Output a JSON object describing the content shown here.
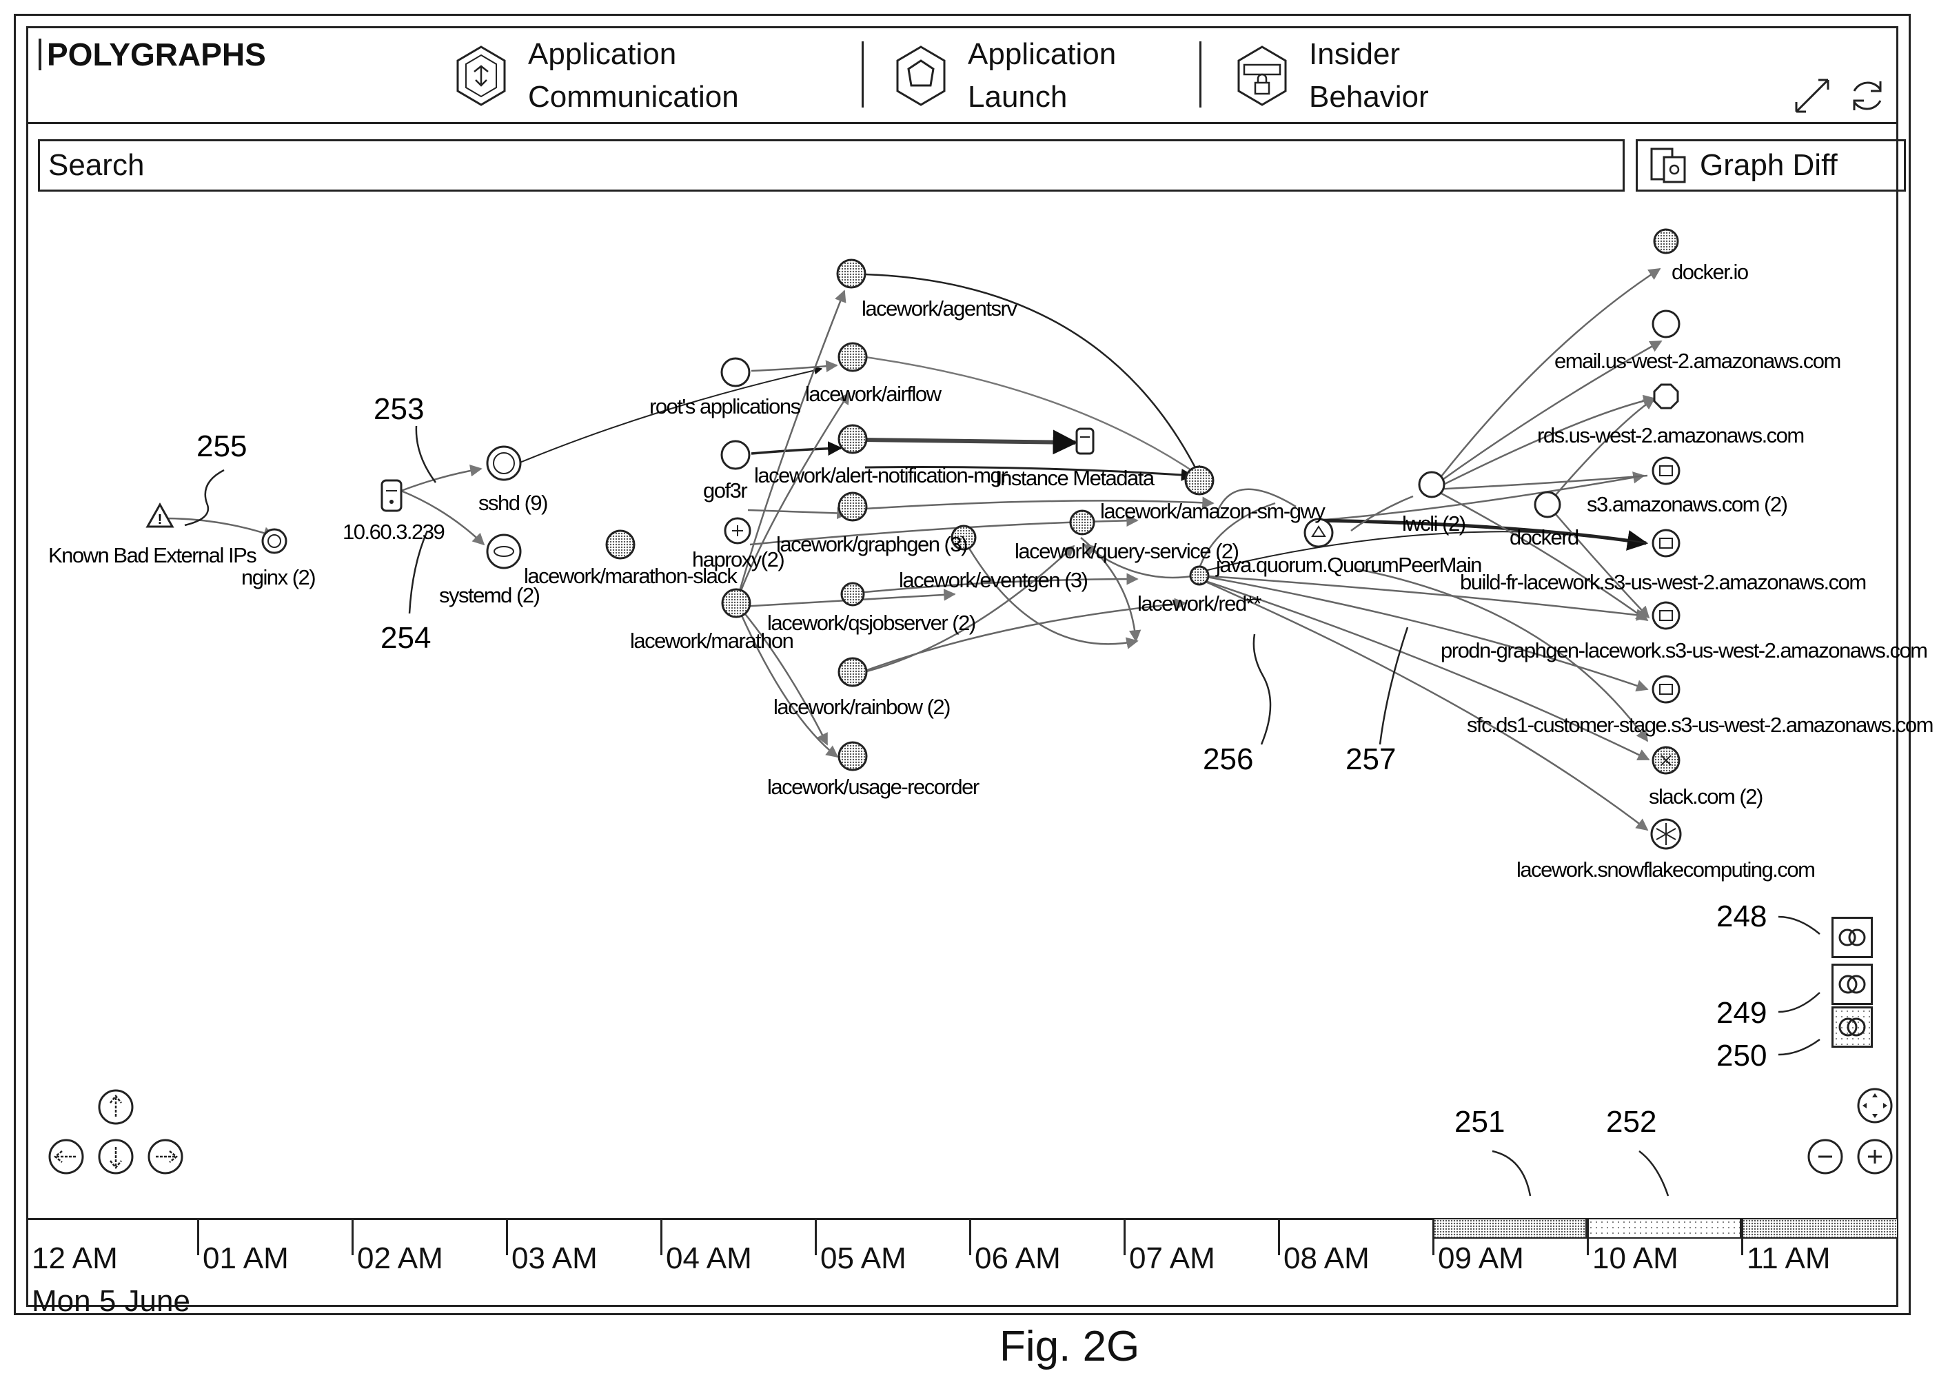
{
  "header": {
    "brand": "POLYGRAPHS",
    "tabs": [
      {
        "line1": "Application",
        "line2": "Communication",
        "icon": "app-communication-icon"
      },
      {
        "line1": "Application",
        "line2": "Launch",
        "icon": "app-launch-icon"
      },
      {
        "line1": "Insider",
        "line2": "Behavior",
        "icon": "insider-behavior-icon"
      }
    ]
  },
  "toolbar": {
    "search_placeholder": "Search",
    "graph_diff_label": "Graph Diff"
  },
  "graph": {
    "nodes": {
      "bad_ips": "Known Bad External IPs",
      "nginx": "nginx (2)",
      "ip": "10.60.3.239",
      "sshd": "sshd (9)",
      "systemd": "systemd (2)",
      "roots_apps": "root's applications",
      "gof3r": "gof3r",
      "agentsrv": "lacework/agentsrv",
      "airflow": "lacework/airflow",
      "alert_mgr": "lacework/alert-notification-mgr",
      "instance_meta": "Instance Metadata",
      "amazon_sm": "lacework/amazon-sm-gwy",
      "marathon_slack": "lacework/marathon-slack",
      "haproxy": "haproxy(2)",
      "graphgen": "lacework/graphgen (3)",
      "query_service": "lacework/query-service (2)",
      "quorum": "java.quorum.QuorumPeerMain",
      "eventgen": "lacework/eventgen (3)",
      "marathon": "lacework/marathon",
      "qsjob": "lacework/qsjobserver (2)",
      "red": "lacework/red**",
      "rainbow": "lacework/rainbow (2)",
      "usage": "lacework/usage-recorder",
      "lwcli": "lwcli (2)",
      "dockerd": "dockerd",
      "docker_io": "docker.io",
      "email_aws": "email.us-west-2.amazonaws.com",
      "rds_aws": "rds.us-west-2.amazonaws.com",
      "s3_aws": "s3.amazonaws.com (2)",
      "build_fr": "build-fr-lacework.s3-us-west-2.amazonaws.com",
      "prodn": "prodn-graphgen-lacework.s3-us-west-2.amazonaws.com",
      "sfc": "sfc.ds1-customer-stage.s3-us-west-2.amazonaws.com",
      "slack": "slack.com (2)",
      "snowflake": "lacework.snowflakecomputing.com"
    },
    "refs": {
      "r253": "253",
      "r254": "254",
      "r255": "255",
      "r256": "256",
      "r257": "257",
      "r248": "248",
      "r249": "249",
      "r250": "250",
      "r251": "251",
      "r252": "252"
    }
  },
  "timeline": {
    "hours": [
      "12 AM",
      "01 AM",
      "02 AM",
      "03 AM",
      "04 AM",
      "05 AM",
      "06 AM",
      "07 AM",
      "08 AM",
      "09 AM",
      "10 AM",
      "11 AM"
    ],
    "date": "Mon 5 June"
  },
  "caption": "Fig. 2G"
}
